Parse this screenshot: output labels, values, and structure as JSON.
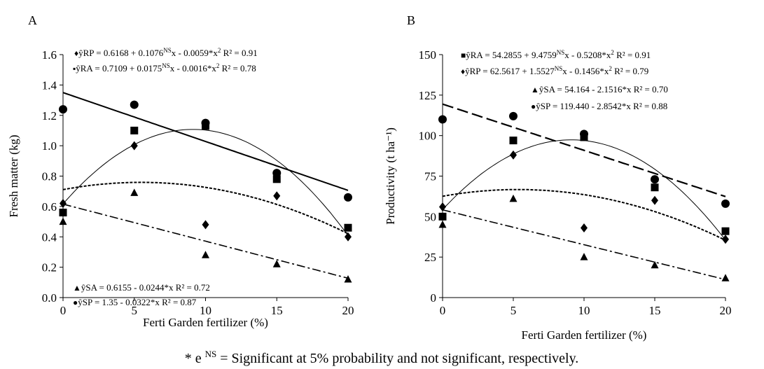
{
  "footnote": {
    "prefix": "* e ",
    "sup": "NS",
    "rest": " = Significant at 5% probability and not significant, respectively."
  },
  "chart_data": [
    {
      "type": "scatter",
      "panel_label": "A",
      "xlabel": "Ferti Garden fertilizer  (%)",
      "ylabel": "Fresh matter (kg)",
      "xlim": [
        0,
        20
      ],
      "ylim": [
        0,
        1.6
      ],
      "x_ticks": [
        0,
        5,
        10,
        15,
        20
      ],
      "y_ticks": [
        "0.0",
        "0.2",
        "0.4",
        "0.6",
        "0.8",
        "1.0",
        "1.2",
        "1.4",
        "1.6"
      ],
      "grid": false,
      "series": [
        {
          "marker": "diamond",
          "line": "solid-thin",
          "x": [
            0,
            5,
            10,
            15,
            20
          ],
          "y": [
            0.62,
            1.0,
            0.48,
            0.67,
            0.4
          ],
          "fit": {
            "type": "quadratic",
            "a": 0.6168,
            "b": 0.1076,
            "c": -0.0059
          },
          "equation": {
            "sym": "♦",
            "pre": "ŷRP = 0.6168 + 0.1076",
            "sup1": "NS",
            "mid": "x - 0.0059*x",
            "sup2": "2",
            "post": " R² = 0.91"
          }
        },
        {
          "marker": "square",
          "line": "dashed-fine",
          "x": [
            0,
            5,
            10,
            15,
            20
          ],
          "y": [
            0.56,
            1.1,
            1.13,
            0.78,
            0.46
          ],
          "fit": {
            "type": "quadratic",
            "a": 0.7109,
            "b": 0.0175,
            "c": -0.0016
          },
          "equation": {
            "sym": "▪",
            "pre": "ŷRA = 0.7109 + 0.0175",
            "sup1": "NS",
            "mid": "x - 0.0016*x",
            "sup2": "2",
            "post": " R² = 0.78"
          }
        },
        {
          "marker": "triangle",
          "line": "dashdot",
          "x": [
            0,
            5,
            10,
            15,
            20
          ],
          "y": [
            0.5,
            0.69,
            0.28,
            0.22,
            0.12
          ],
          "fit": {
            "type": "linear",
            "a": 0.6155,
            "b": -0.0244
          },
          "equation": {
            "sym": "▲",
            "pre": "ŷSA = 0.6155 - 0.0244*x",
            "sup1": "",
            "mid": "",
            "sup2": "",
            "post": "  R² = 0.72"
          }
        },
        {
          "marker": "circle",
          "line": "solid",
          "x": [
            0,
            5,
            10,
            15,
            20
          ],
          "y": [
            1.24,
            1.27,
            1.15,
            0.82,
            0.66
          ],
          "fit": {
            "type": "linear",
            "a": 1.35,
            "b": -0.0322
          },
          "equation": {
            "sym": "●",
            "pre": "ŷSP = 1.35 - 0.0322*x",
            "sup1": "",
            "mid": "",
            "sup2": "",
            "post": "  R² = 0.87"
          }
        }
      ]
    },
    {
      "type": "scatter",
      "panel_label": "B",
      "xlabel": "Ferti Garden fertilizer (%)",
      "ylabel": "Productivity (t ha⁻¹)",
      "xlim": [
        0,
        20
      ],
      "ylim": [
        0,
        150
      ],
      "x_ticks": [
        0,
        5,
        10,
        15,
        20
      ],
      "y_ticks": [
        "0",
        "25",
        "50",
        "75",
        "100",
        "125",
        "150"
      ],
      "grid": false,
      "series": [
        {
          "marker": "square",
          "line": "solid-thin",
          "x": [
            0,
            5,
            10,
            15,
            20
          ],
          "y": [
            50,
            97,
            99,
            68,
            41
          ],
          "fit": {
            "type": "quadratic",
            "a": 54.2855,
            "b": 9.4759,
            "c": -0.5208
          },
          "equation": {
            "sym": "■",
            "pre": "ŷRA = 54.2855 + 9.4759",
            "sup1": "NS",
            "mid": "x - 0.5208*x",
            "sup2": "2",
            "post": " R² = 0.91"
          }
        },
        {
          "marker": "diamond",
          "line": "dashed-fine",
          "x": [
            0,
            5,
            10,
            15,
            20
          ],
          "y": [
            56,
            88,
            43,
            60,
            36
          ],
          "fit": {
            "type": "quadratic",
            "a": 62.5617,
            "b": 1.5527,
            "c": -0.1456
          },
          "equation": {
            "sym": "♦",
            "pre": "ŷRP = 62.5617 + 1.5527",
            "sup1": "NS",
            "mid": "x - 0.1456*x",
            "sup2": "2",
            "post": " R² = 0.79"
          }
        },
        {
          "marker": "triangle",
          "line": "dashdot",
          "x": [
            0,
            5,
            10,
            15,
            20
          ],
          "y": [
            45,
            61,
            25,
            20,
            12
          ],
          "fit": {
            "type": "linear",
            "a": 54.164,
            "b": -2.1516
          },
          "equation": {
            "sym": "▲",
            "pre": "ŷSA = 54.164 - 2.1516*x R² = 0.70",
            "sup1": "",
            "mid": "",
            "sup2": "",
            "post": ""
          }
        },
        {
          "marker": "circle",
          "line": "dashed-long",
          "x": [
            0,
            5,
            10,
            15,
            20
          ],
          "y": [
            110,
            112,
            101,
            73,
            58
          ],
          "fit": {
            "type": "linear",
            "a": 119.44,
            "b": -2.8542
          },
          "equation": {
            "sym": "●",
            "pre": "ŷSP = 119.440 - 2.8542*x R² = 0.88",
            "sup1": "",
            "mid": "",
            "sup2": "",
            "post": ""
          }
        }
      ]
    }
  ]
}
